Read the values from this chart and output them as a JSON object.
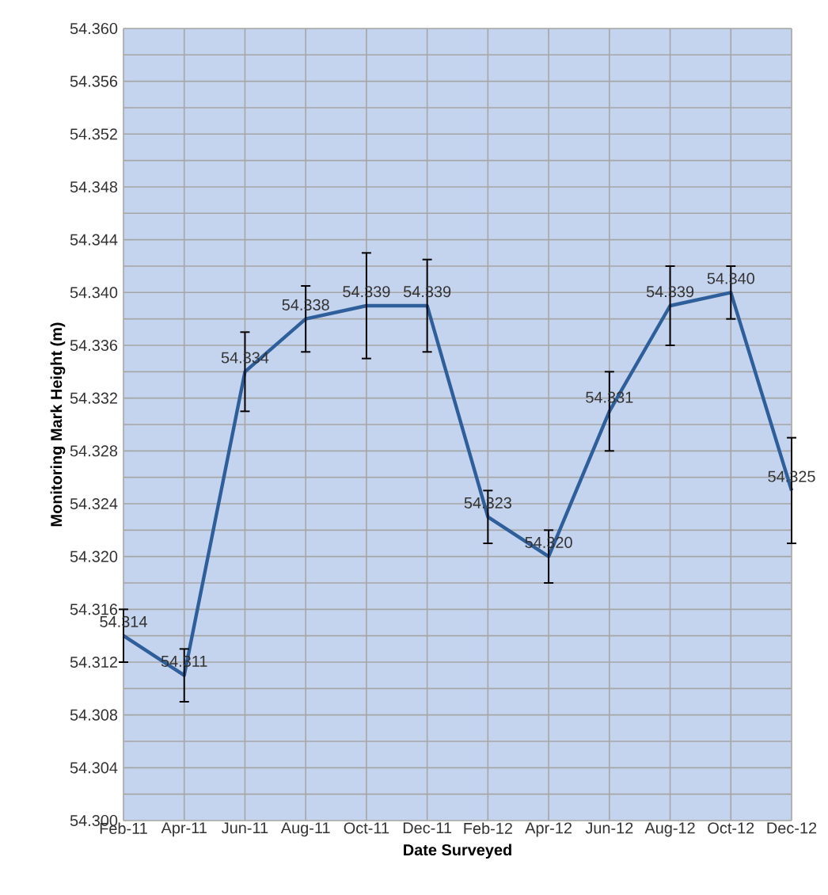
{
  "chart_data": {
    "type": "line",
    "xlabel": "Date Surveyed",
    "ylabel": "Monitoring Mark Height (m)",
    "categories": [
      "Feb-11",
      "Apr-11",
      "Jun-11",
      "Aug-11",
      "Oct-11",
      "Dec-11",
      "Feb-12",
      "Apr-12",
      "Jun-12",
      "Aug-12",
      "Oct-12",
      "Dec-12"
    ],
    "series": [
      {
        "color": "#2f5f9a",
        "values": [
          54.314,
          54.311,
          54.334,
          54.338,
          54.339,
          54.339,
          54.323,
          54.32,
          54.331,
          54.339,
          54.34,
          54.325
        ],
        "errors": [
          0.002,
          0.002,
          0.003,
          0.0025,
          0.004,
          0.0035,
          0.002,
          0.002,
          0.003,
          0.003,
          0.002,
          0.004
        ],
        "value_labels": [
          "54.314",
          "54.311",
          "54.334",
          "54.338",
          "54.339",
          "54.339",
          "54.323",
          "54.320",
          "54.331",
          "54.339",
          "54.340",
          "54.325"
        ]
      }
    ],
    "ylim": [
      54.3,
      54.36
    ],
    "yticks": [
      {
        "value": 54.3,
        "label": "54.300"
      },
      {
        "value": 54.304,
        "label": "54.304"
      },
      {
        "value": 54.308,
        "label": "54.308"
      },
      {
        "value": 54.312,
        "label": "54.312"
      },
      {
        "value": 54.316,
        "label": "54.316"
      },
      {
        "value": 54.32,
        "label": "54.320"
      },
      {
        "value": 54.324,
        "label": "54.324"
      },
      {
        "value": 54.328,
        "label": "54.328"
      },
      {
        "value": 54.332,
        "label": "54.332"
      },
      {
        "value": 54.336,
        "label": "54.336"
      },
      {
        "value": 54.34,
        "label": "54.340"
      },
      {
        "value": 54.344,
        "label": "54.344"
      },
      {
        "value": 54.348,
        "label": "54.348"
      },
      {
        "value": 54.352,
        "label": "54.352"
      },
      {
        "value": 54.356,
        "label": "54.356"
      },
      {
        "value": 54.36,
        "label": "54.360"
      }
    ],
    "grid": true,
    "line_style": "solid"
  }
}
